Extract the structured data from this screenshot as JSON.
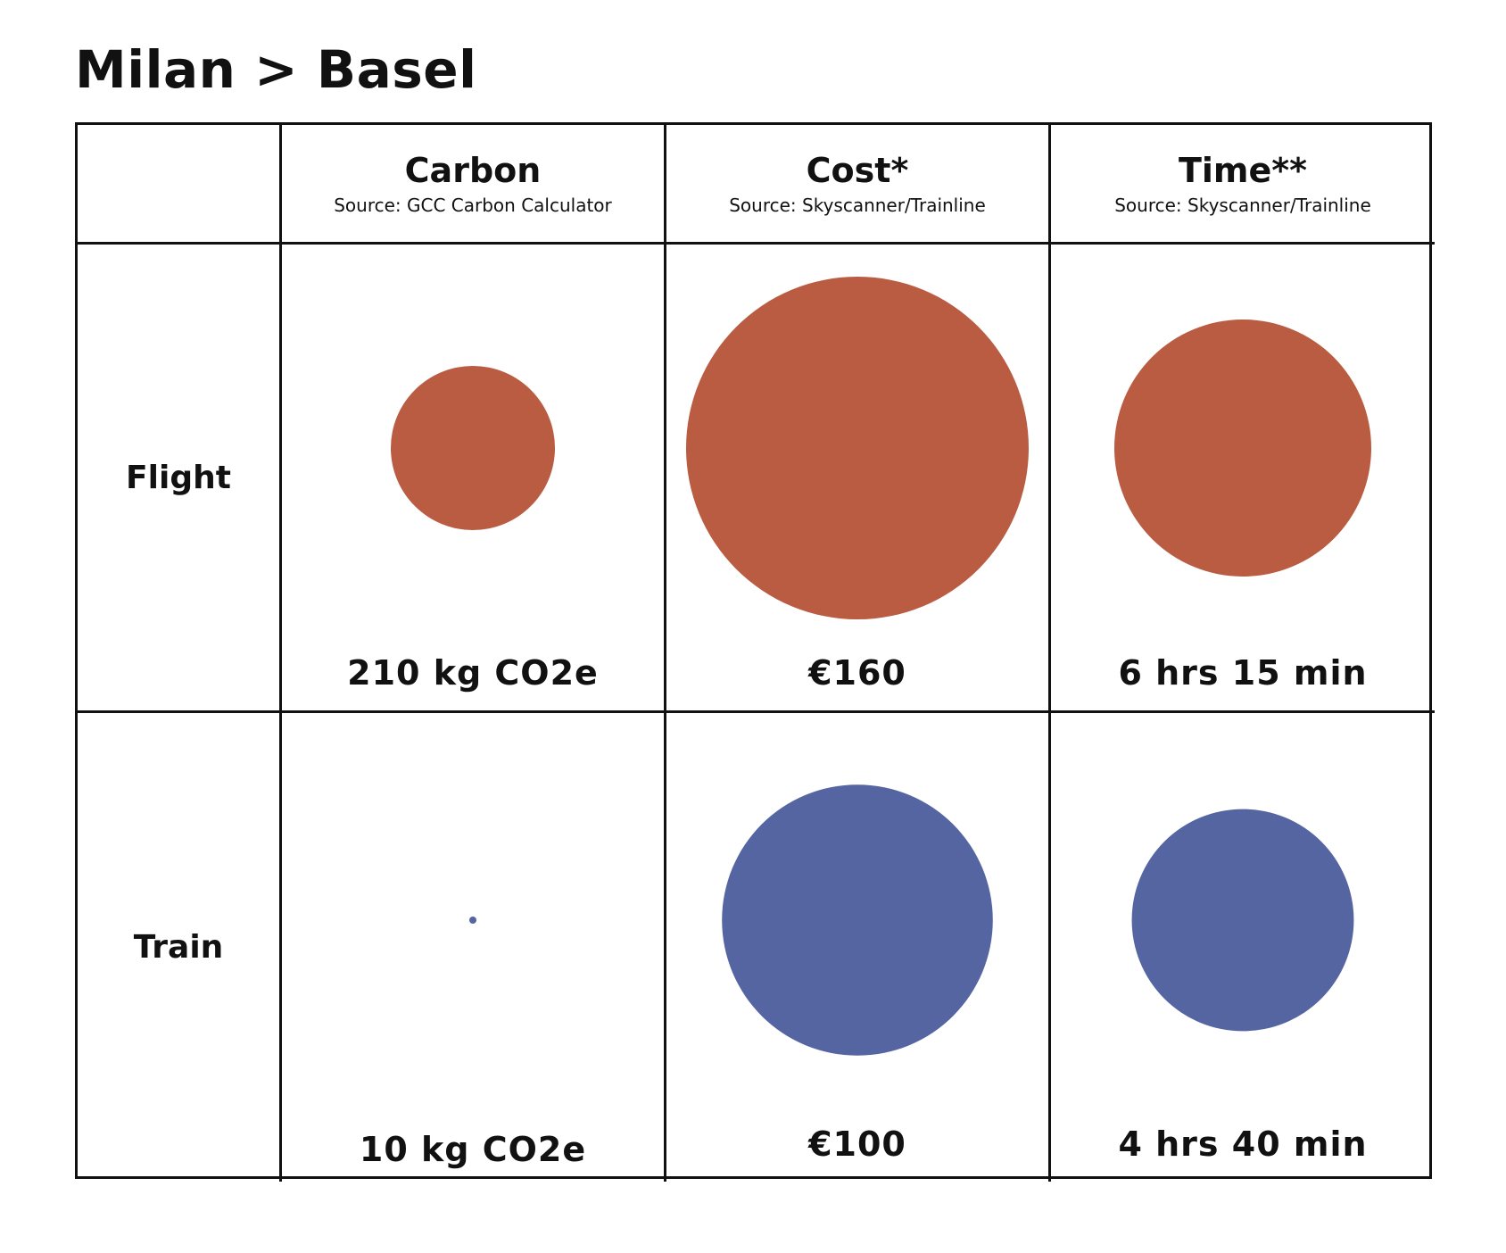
{
  "title": "Milan > Basel",
  "colors": {
    "flight": "#B95C42",
    "train": "#5465A2"
  },
  "chart_data": {
    "type": "bubble-table",
    "title": "Milan > Basel",
    "rows": [
      "Flight",
      "Train"
    ],
    "columns": [
      {
        "key": "carbon",
        "title": "Carbon",
        "source": "Source: GCC Carbon Calculator"
      },
      {
        "key": "cost",
        "title": "Cost*",
        "source": "Source: Skyscanner/Trainline"
      },
      {
        "key": "time",
        "title": "Time**",
        "source": "Source: Skyscanner/Trainline"
      }
    ],
    "values": {
      "Flight": {
        "carbon": {
          "value": 210,
          "unit": "kg CO2e",
          "label": "210 kg CO2e"
        },
        "cost": {
          "value": 160,
          "unit": "EUR",
          "label": "€160"
        },
        "time": {
          "value": 375,
          "unit": "min",
          "label": "6 hrs 15 min"
        }
      },
      "Train": {
        "carbon": {
          "value": 10,
          "unit": "kg CO2e",
          "label": "10 kg CO2e"
        },
        "cost": {
          "value": 100,
          "unit": "EUR",
          "label": "€100"
        },
        "time": {
          "value": 280,
          "unit": "min",
          "label": "4 hrs 40 min"
        }
      }
    }
  }
}
